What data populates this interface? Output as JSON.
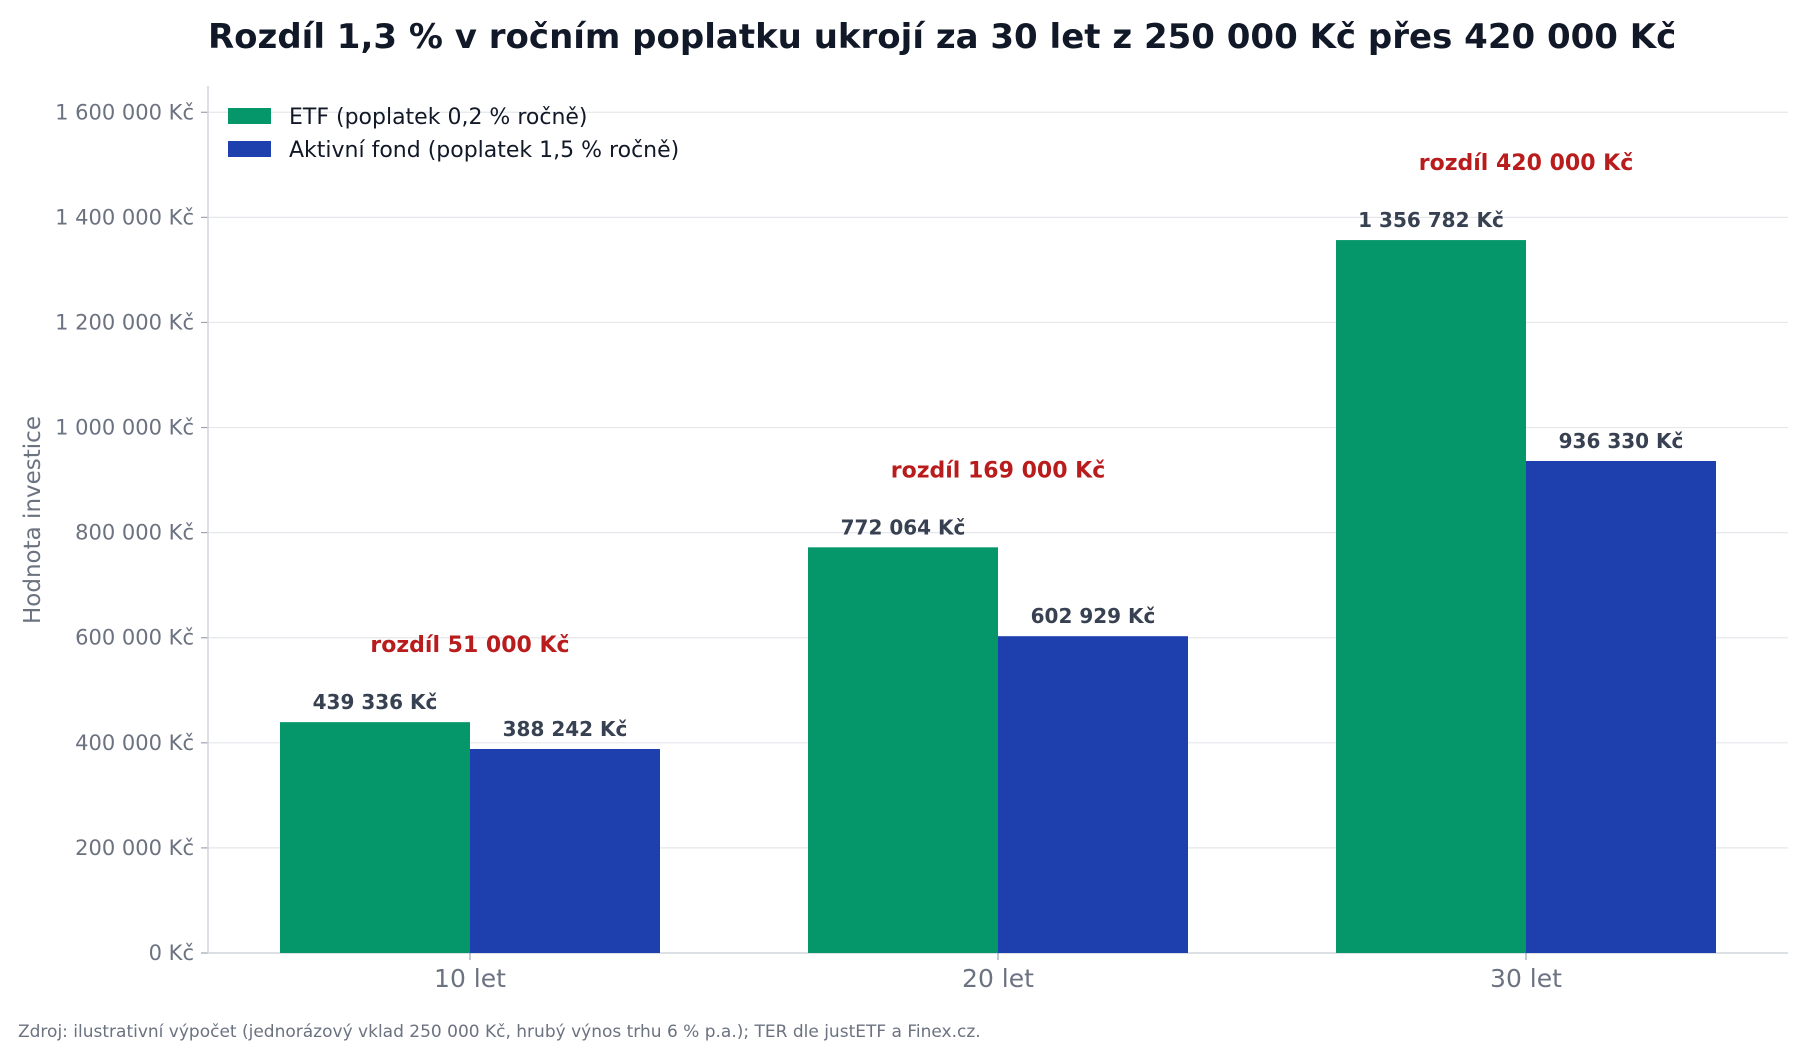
{
  "chart_data": {
    "type": "bar",
    "title": "Rozdíl 1,3 % v ročním poplatku ukrojí za 30 let z 250 000 Kč přes 420 000 Kč",
    "ylabel": "Hodnota investice",
    "xlabel": "",
    "categories": [
      "10 let",
      "20 let",
      "30 let"
    ],
    "series": [
      {
        "name": "ETF (poplatek 0,2 % ročně)",
        "color": "#059669",
        "values": [
          439336,
          772064,
          1356782
        ],
        "labels": [
          "439 336 Kč",
          "772 064 Kč",
          "1 356 782 Kč"
        ]
      },
      {
        "name": "Aktivní fond (poplatek 1,5 % ročně)",
        "color": "#1e40af",
        "values": [
          388242,
          602929,
          936330
        ],
        "labels": [
          "388 242 Kč",
          "602 929 Kč",
          "936 330 Kč"
        ]
      }
    ],
    "annotations": [
      "rozdíl 51 000 Kč",
      "rozdíl 169 000 Kč",
      "rozdíl 420 000 Kč"
    ],
    "annotation_color": "#b91c1c",
    "ylim": [
      0,
      1650000
    ],
    "yticks": [
      0,
      200000,
      400000,
      600000,
      800000,
      1000000,
      1200000,
      1400000,
      1600000
    ],
    "ytick_labels": [
      "0 Kč",
      "200 000 Kč",
      "400 000 Kč",
      "600 000 Kč",
      "800 000 Kč",
      "1 000 000 Kč",
      "1 200 000 Kč",
      "1 400 000 Kč",
      "1 600 000 Kč"
    ],
    "grid": true,
    "legend_position": "top-left"
  },
  "source": "Zdroj: ilustrativní výpočet (jednorázový vklad 250 000 Kč, hrubý výnos trhu 6 % p.a.); TER dle justETF a Finex.cz."
}
